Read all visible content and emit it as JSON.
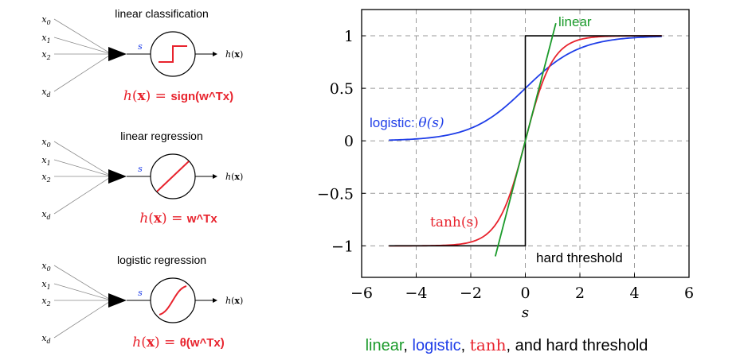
{
  "colors": {
    "linear": "#1a9a2a",
    "logistic": "#1f3ee8",
    "tanh": "#e8232d",
    "threshold": "#000000",
    "grid": "#9a9a9a",
    "neuron_label": "#e8232d",
    "s_label": "#1f3ee8"
  },
  "panels": [
    {
      "title": "linear classification",
      "inputs": [
        "x0",
        "x1",
        "x2",
        "xd"
      ],
      "s_label": "s",
      "output": "h(x)",
      "formula_lhs": "h(x) =",
      "formula_rhs": "sign(w^Tx)",
      "activation_icon": "step-function-icon"
    },
    {
      "title": "linear regression",
      "inputs": [
        "x0",
        "x1",
        "x2",
        "xd"
      ],
      "s_label": "s",
      "output": "h(x)",
      "formula_lhs": "h(x) =",
      "formula_rhs": "w^Tx",
      "activation_icon": "identity-line-icon"
    },
    {
      "title": "logistic regression",
      "inputs": [
        "x0",
        "x1",
        "x2",
        "xd"
      ],
      "s_label": "s",
      "output": "h(x)",
      "formula_lhs": "h(x) =",
      "formula_rhs": "θ(w^Tx)",
      "activation_icon": "sigmoid-curve-icon"
    }
  ],
  "caption": {
    "parts": [
      {
        "text": "linear",
        "color": "#1a9a2a"
      },
      {
        "text": ", ",
        "color": "#000000"
      },
      {
        "text": "logistic",
        "color": "#1f3ee8"
      },
      {
        "text": ", ",
        "color": "#000000"
      },
      {
        "text": "tanh",
        "color": "#e8232d"
      },
      {
        "text": ", and hard threshold",
        "color": "#000000"
      }
    ]
  },
  "chart_data": {
    "type": "line",
    "xlabel": "s",
    "ylabel": "",
    "xlim": [
      -6,
      6
    ],
    "ylim": [
      -1.3,
      1.25
    ],
    "xticks": [
      -6,
      -4,
      -2,
      0,
      2,
      4,
      6
    ],
    "xtick_labels": [
      "−6",
      "−4",
      "−2",
      "0",
      "2",
      "4",
      "6"
    ],
    "yticks": [
      -1,
      -0.5,
      0,
      0.5,
      1
    ],
    "ytick_labels": [
      "−1",
      "−0.5",
      "0",
      "0.5",
      "1"
    ],
    "grid": true,
    "series": [
      {
        "name": "linear",
        "color": "#1a9a2a",
        "function": "linear",
        "domain": [
          -1.1,
          1.12
        ]
      },
      {
        "name": "logistic: θ(s)",
        "color": "#1f3ee8",
        "function": "logistic",
        "domain": [
          -5,
          5
        ]
      },
      {
        "name": "tanh(s)",
        "color": "#e8232d",
        "function": "tanh",
        "domain": [
          -5,
          5
        ]
      },
      {
        "name": "hard threshold",
        "color": "#000000",
        "function": "sign",
        "domain": [
          -5,
          5
        ]
      }
    ],
    "annotations": [
      {
        "text": "linear",
        "color": "#1a9a2a"
      },
      {
        "text": "logistic:",
        "math": "θ(s)",
        "color": "#1f3ee8"
      },
      {
        "text": "tanh(s)",
        "color": "#e8232d"
      },
      {
        "text": "hard threshold",
        "color": "#000000"
      }
    ]
  }
}
